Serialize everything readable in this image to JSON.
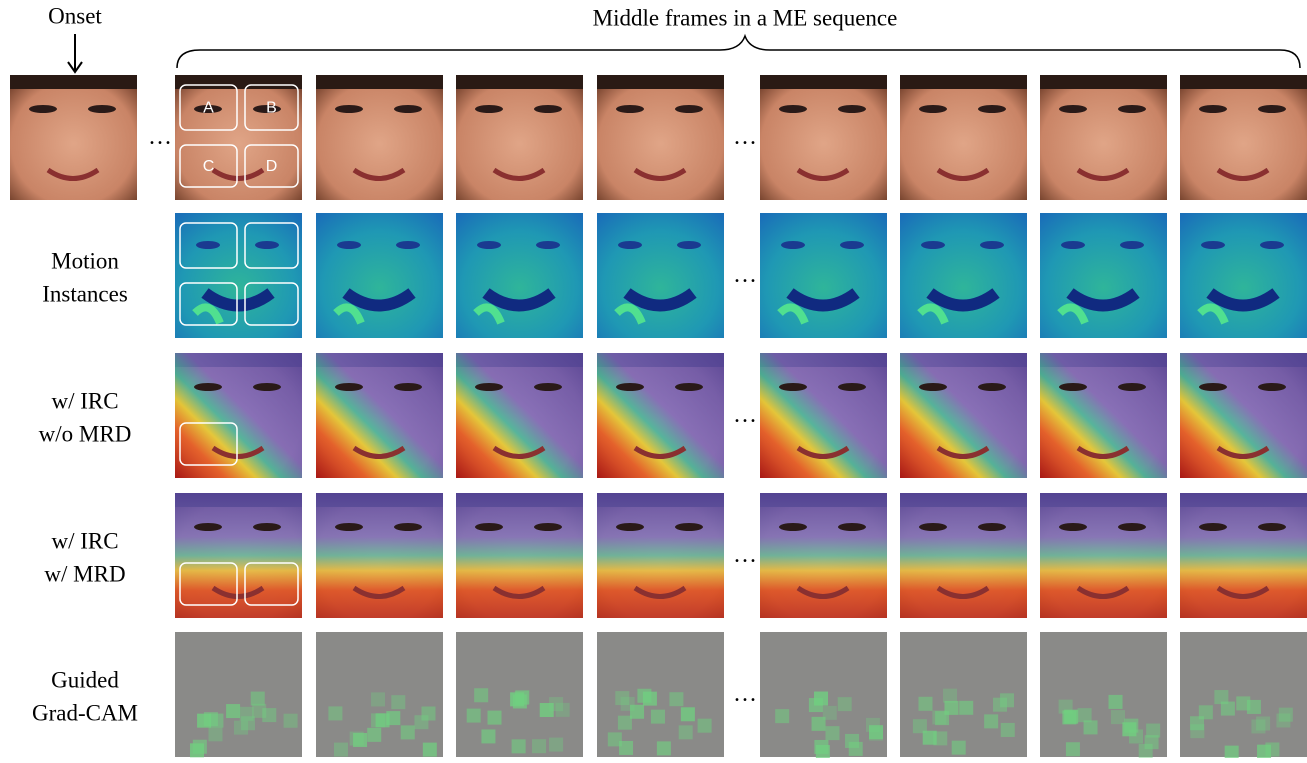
{
  "header": {
    "onset": "Onset",
    "title": "Middle frames in a ME sequence"
  },
  "rows": [
    {
      "lines": [
        "Motion",
        "Instances"
      ]
    },
    {
      "lines": [
        "w/ IRC",
        "w/o MRD"
      ]
    },
    {
      "lines": [
        "w/ IRC",
        "w/ MRD"
      ]
    },
    {
      "lines": [
        "Guided",
        "Grad-CAM"
      ]
    }
  ],
  "regions": [
    "A",
    "B",
    "C",
    "D"
  ],
  "ellipsis": "···"
}
